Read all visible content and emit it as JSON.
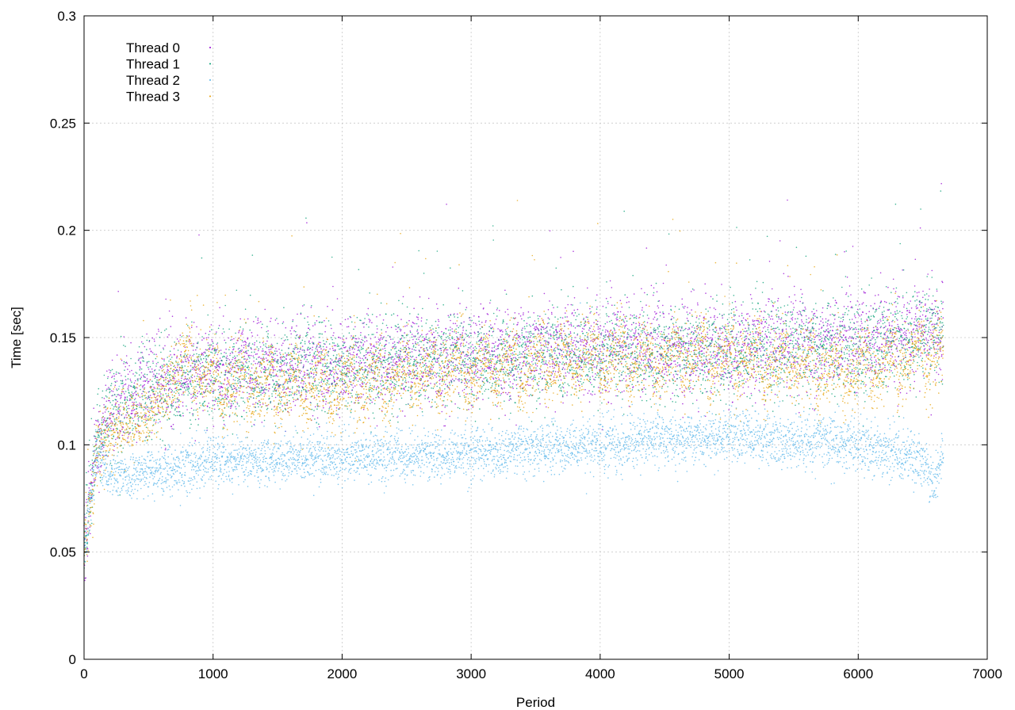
{
  "chart_data": {
    "type": "scatter",
    "title": "",
    "xlabel": "Period",
    "ylabel": "Time [sec]",
    "xlim": [
      0,
      7000
    ],
    "ylim": [
      0,
      0.3
    ],
    "xticks": [
      0,
      1000,
      2000,
      3000,
      4000,
      5000,
      6000,
      7000
    ],
    "yticks": [
      0,
      0.05,
      0.1,
      0.15,
      0.2,
      0.25,
      0.3
    ],
    "xtick_labels": [
      "0",
      "1000",
      "2000",
      "3000",
      "4000",
      "5000",
      "6000",
      "7000"
    ],
    "ytick_labels": [
      "0",
      "0.05",
      "0.1",
      "0.15",
      "0.2",
      "0.25",
      "0.3"
    ],
    "grid": true,
    "legend_position": "top-left",
    "x_max_period": 6660,
    "series": [
      {
        "name": "Thread 0",
        "color": "#9400d3",
        "profile": [
          [
            0,
            0.05
          ],
          [
            100,
            0.1
          ],
          [
            200,
            0.12
          ],
          [
            500,
            0.128
          ],
          [
            1000,
            0.135
          ],
          [
            2000,
            0.138
          ],
          [
            3000,
            0.142
          ],
          [
            4000,
            0.145
          ],
          [
            5000,
            0.145
          ],
          [
            6000,
            0.148
          ],
          [
            6660,
            0.155
          ]
        ],
        "spread": 0.011
      },
      {
        "name": "Thread 1",
        "color": "#009e73",
        "profile": [
          [
            0,
            0.05
          ],
          [
            100,
            0.1
          ],
          [
            200,
            0.115
          ],
          [
            500,
            0.125
          ],
          [
            1000,
            0.132
          ],
          [
            2000,
            0.136
          ],
          [
            3000,
            0.14
          ],
          [
            4000,
            0.142
          ],
          [
            5000,
            0.143
          ],
          [
            6000,
            0.146
          ],
          [
            6660,
            0.152
          ]
        ],
        "spread": 0.011
      },
      {
        "name": "Thread 2",
        "color": "#56b4e9",
        "profile": [
          [
            0,
            0.05
          ],
          [
            100,
            0.095
          ],
          [
            200,
            0.085
          ],
          [
            500,
            0.087
          ],
          [
            1000,
            0.092
          ],
          [
            2000,
            0.094
          ],
          [
            3000,
            0.096
          ],
          [
            4000,
            0.1
          ],
          [
            5000,
            0.104
          ],
          [
            6000,
            0.1
          ],
          [
            6500,
            0.093
          ],
          [
            6600,
            0.08
          ],
          [
            6660,
            0.1
          ]
        ],
        "spread": 0.006
      },
      {
        "name": "Thread 3",
        "color": "#e69f00",
        "profile": [
          [
            0,
            0.05
          ],
          [
            100,
            0.095
          ],
          [
            200,
            0.108
          ],
          [
            500,
            0.113
          ],
          [
            800,
            0.14
          ],
          [
            1000,
            0.128
          ],
          [
            2000,
            0.128
          ],
          [
            3000,
            0.135
          ],
          [
            4000,
            0.14
          ],
          [
            5000,
            0.14
          ],
          [
            6000,
            0.135
          ],
          [
            6660,
            0.145
          ]
        ],
        "spread": 0.008
      }
    ]
  }
}
